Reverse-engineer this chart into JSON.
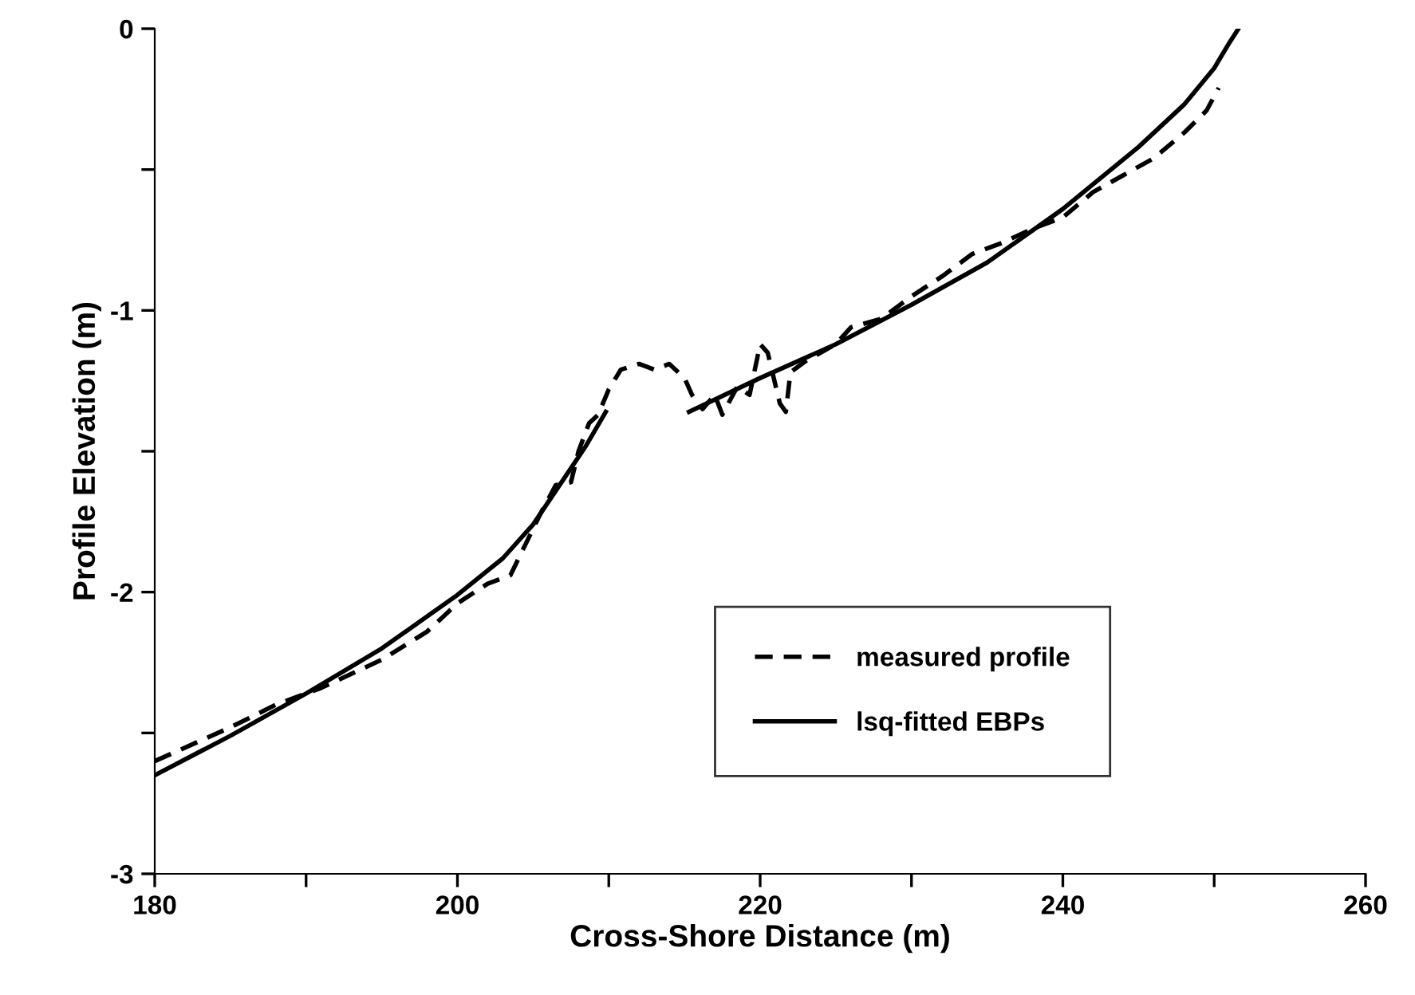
{
  "chart_data": {
    "type": "line",
    "xlabel": "Cross-Shore Distance (m)",
    "ylabel": "Profile Elevation (m)",
    "xlim": [
      180,
      260
    ],
    "ylim": [
      -3,
      0
    ],
    "xticks": [
      180,
      {
        "value": 190,
        "label": null
      },
      200,
      {
        "value": 210,
        "label": null
      },
      220,
      {
        "value": 230,
        "label": null
      },
      240,
      {
        "value": 250,
        "label": null
      },
      260
    ],
    "yticks": [
      -3,
      {
        "value": -2.5,
        "label": null
      },
      -2,
      {
        "value": -1.5,
        "label": null
      },
      -1,
      {
        "value": -0.5,
        "label": null
      },
      0
    ],
    "grid": false,
    "legend": "bottom right",
    "series": [
      {
        "name": "measured profile",
        "color": "#000000",
        "line_style": "dashed",
        "x": [
          180,
          185,
          188,
          191,
          195,
          198,
          200,
          202,
          203.5,
          204.5,
          205.5,
          206.5,
          207.5,
          208,
          208.7,
          209.3,
          210,
          210.8,
          212,
          213,
          214,
          215,
          215.5,
          216.2,
          217,
          217.5,
          218.5,
          219.3,
          220,
          220.5,
          221.3,
          221.7,
          222,
          223,
          224,
          225,
          226,
          228,
          230,
          232,
          234,
          236,
          238,
          240,
          242,
          244,
          246,
          248,
          249.5,
          250.3
        ],
        "values": [
          -2.6,
          -2.48,
          -2.4,
          -2.34,
          -2.24,
          -2.14,
          -2.04,
          -1.97,
          -1.94,
          -1.83,
          -1.72,
          -1.62,
          -1.61,
          -1.5,
          -1.4,
          -1.37,
          -1.28,
          -1.21,
          -1.19,
          -1.21,
          -1.19,
          -1.24,
          -1.3,
          -1.35,
          -1.3,
          -1.37,
          -1.27,
          -1.3,
          -1.12,
          -1.15,
          -1.33,
          -1.36,
          -1.22,
          -1.18,
          -1.15,
          -1.12,
          -1.06,
          -1.03,
          -0.95,
          -0.88,
          -0.8,
          -0.76,
          -0.71,
          -0.67,
          -0.58,
          -0.52,
          -0.46,
          -0.37,
          -0.29,
          -0.21
        ]
      },
      {
        "name": "lsq-fitted EBPs",
        "color": "#000000",
        "line_style": "solid",
        "x": [
          180,
          185,
          190,
          195,
          200,
          203,
          205,
          207,
          208.5,
          209.8,
          null,
          215.3,
          220,
          225,
          230,
          235,
          240,
          245,
          248,
          250,
          251,
          251.6
        ],
        "values": [
          -2.65,
          -2.51,
          -2.36,
          -2.2,
          -2.01,
          -1.88,
          -1.76,
          -1.6,
          -1.48,
          -1.36,
          null,
          -1.36,
          -1.24,
          -1.12,
          -0.98,
          -0.83,
          -0.64,
          -0.42,
          -0.27,
          -0.14,
          -0.05,
          0.0
        ]
      }
    ]
  }
}
